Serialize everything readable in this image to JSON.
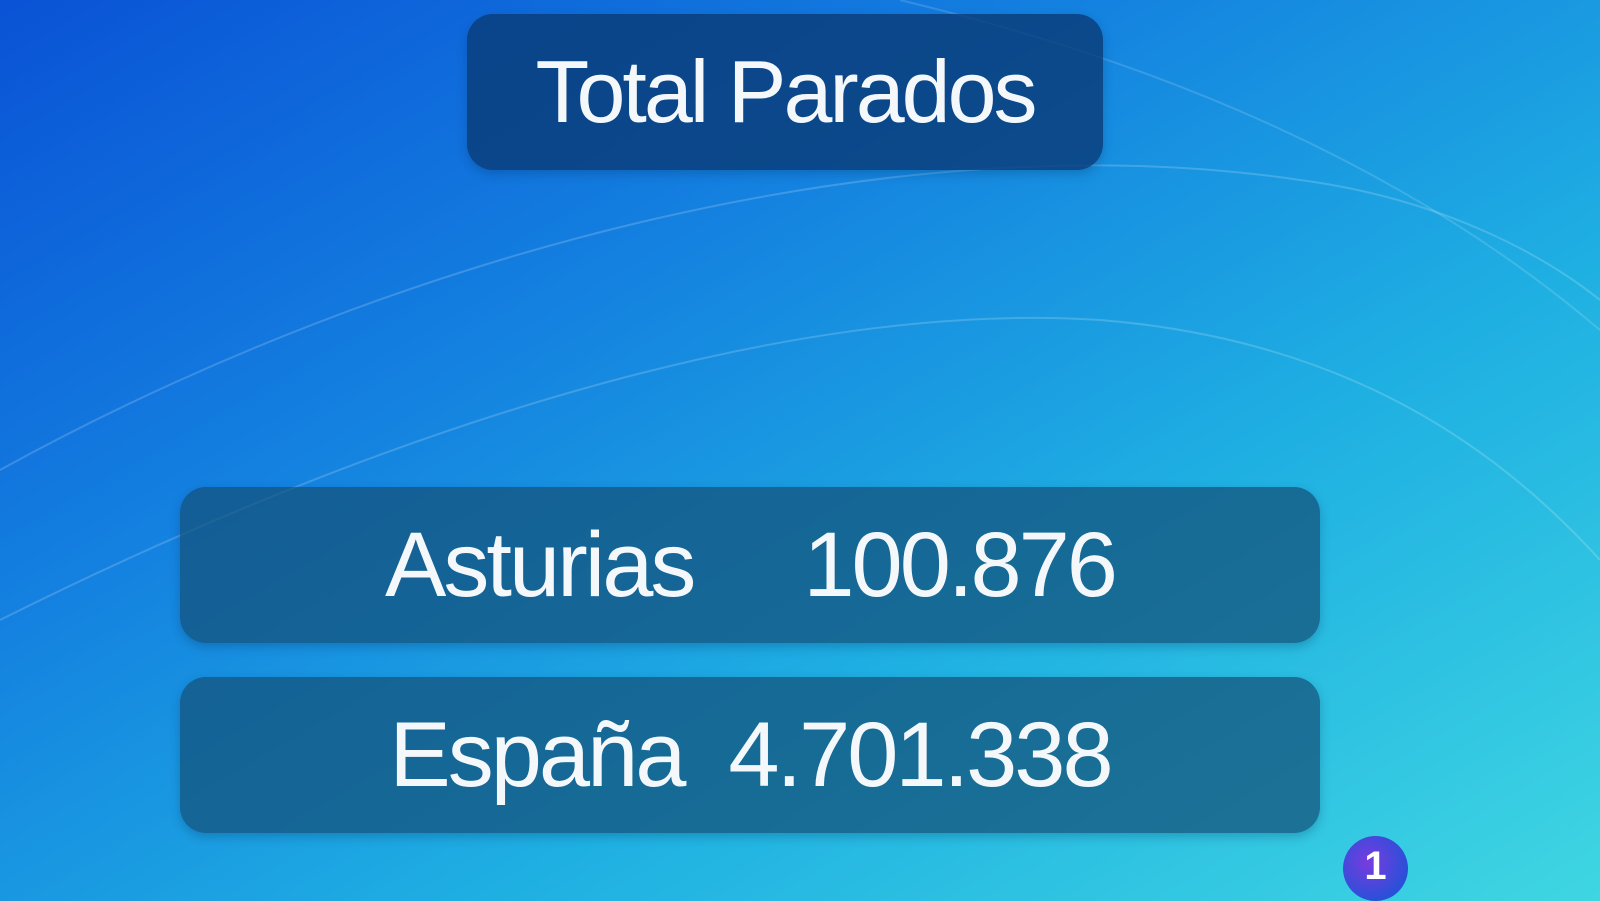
{
  "title": "Total Parados",
  "rows": [
    {
      "label": "Asturias",
      "value": "100.876"
    },
    {
      "label": "España",
      "value": "4.701.338"
    }
  ],
  "logo": {
    "text": "1"
  },
  "colors": {
    "background_top": "#0a52d6",
    "background_bottom": "#3fd6e2",
    "panel": "#0d3c78"
  }
}
